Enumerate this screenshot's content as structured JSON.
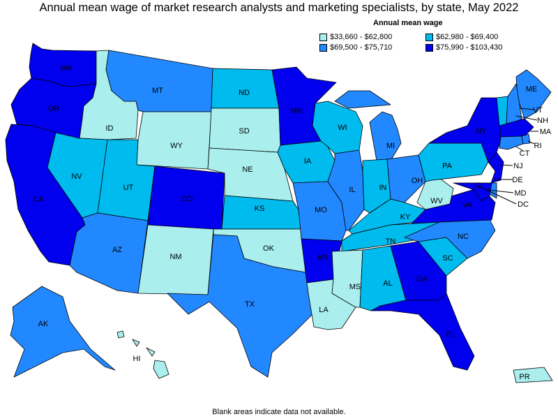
{
  "title": "Annual mean wage of market research analysts and marketing specialists, by state, May 2022",
  "legend": {
    "title": "Annual mean wage",
    "items": [
      {
        "label": "$33,660 - $62,800",
        "color": "#aaeeee"
      },
      {
        "label": "$62,980 - $69,400",
        "color": "#00bbee"
      },
      {
        "label": "$69,500 - $75,710",
        "color": "#2288ff"
      },
      {
        "label": "$75,990 - $103,430",
        "color": "#0000ee"
      }
    ]
  },
  "footnote": "Blank areas indicate data not available.",
  "states": {
    "WA": {
      "label": "WA",
      "tier": 3
    },
    "OR": {
      "label": "OR",
      "tier": 3
    },
    "CA": {
      "label": "CA",
      "tier": 3
    },
    "ID": {
      "label": "ID",
      "tier": 0
    },
    "NV": {
      "label": "NV",
      "tier": 1
    },
    "MT": {
      "label": "MT",
      "tier": 2
    },
    "WY": {
      "label": "WY",
      "tier": 0
    },
    "UT": {
      "label": "UT",
      "tier": 1
    },
    "AZ": {
      "label": "AZ",
      "tier": 2
    },
    "CO": {
      "label": "CO",
      "tier": 3
    },
    "NM": {
      "label": "NM",
      "tier": 0
    },
    "ND": {
      "label": "ND",
      "tier": 1
    },
    "SD": {
      "label": "SD",
      "tier": 0
    },
    "NE": {
      "label": "NE",
      "tier": 0
    },
    "KS": {
      "label": "KS",
      "tier": 1
    },
    "OK": {
      "label": "OK",
      "tier": 0
    },
    "TX": {
      "label": "TX",
      "tier": 2
    },
    "MN": {
      "label": "MN",
      "tier": 3
    },
    "IA": {
      "label": "IA",
      "tier": 1
    },
    "MO": {
      "label": "MO",
      "tier": 2
    },
    "AR": {
      "label": "AR",
      "tier": 3
    },
    "LA": {
      "label": "LA",
      "tier": 0
    },
    "WI": {
      "label": "WI",
      "tier": 1
    },
    "IL": {
      "label": "IL",
      "tier": 2
    },
    "MI": {
      "label": "MI",
      "tier": 2
    },
    "IN": {
      "label": "IN",
      "tier": 1
    },
    "OH": {
      "label": "OH",
      "tier": 2
    },
    "KY": {
      "label": "KY",
      "tier": 1
    },
    "TN": {
      "label": "TN",
      "tier": 1
    },
    "MS": {
      "label": "MS",
      "tier": 0
    },
    "AL": {
      "label": "AL",
      "tier": 1
    },
    "GA": {
      "label": "GA",
      "tier": 3
    },
    "FL": {
      "label": "FL",
      "tier": 3
    },
    "SC": {
      "label": "SC",
      "tier": 1
    },
    "NC": {
      "label": "NC",
      "tier": 2
    },
    "VA": {
      "label": "VA",
      "tier": 3
    },
    "WV": {
      "label": "WV",
      "tier": 0
    },
    "PA": {
      "label": "PA",
      "tier": 1
    },
    "NY": {
      "label": "NY",
      "tier": 3
    },
    "ME": {
      "label": "ME",
      "tier": 2
    },
    "VT": {
      "label": "VT",
      "tier": 1
    },
    "NH": {
      "label": "NH",
      "tier": 2
    },
    "MA": {
      "label": "MA",
      "tier": 3
    },
    "RI": {
      "label": "RI",
      "tier": 2
    },
    "CT": {
      "label": "CT",
      "tier": 2
    },
    "NJ": {
      "label": "NJ",
      "tier": 3
    },
    "DE": {
      "label": "DE",
      "tier": 2
    },
    "MD": {
      "label": "MD",
      "tier": 3
    },
    "DC": {
      "label": "DC",
      "tier": 3
    },
    "AK": {
      "label": "AK",
      "tier": 2
    },
    "HI": {
      "label": "HI",
      "tier": 0
    },
    "PR": {
      "label": "PR",
      "tier": 0
    }
  }
}
